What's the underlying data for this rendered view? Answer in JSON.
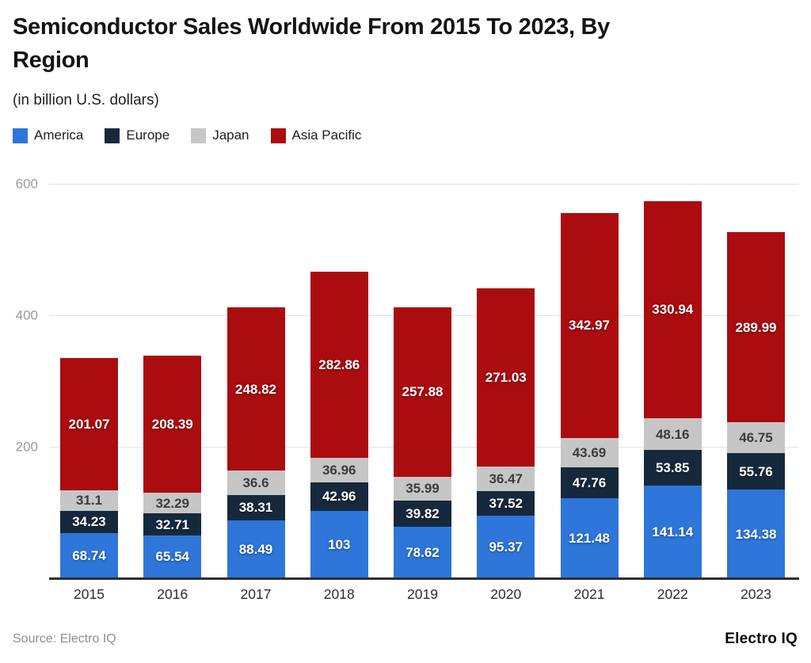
{
  "header": {
    "title": "Semiconductor Sales Worldwide From 2015 To 2023, By Region",
    "subtitle": "(in billion U.S. dollars)"
  },
  "footer": {
    "source": "Source: Electro IQ",
    "brand": "Electro IQ"
  },
  "chart_data": {
    "type": "bar",
    "stacked": true,
    "title": "Semiconductor Sales Worldwide From 2015 To 2023, By Region",
    "subtitle": "(in billion U.S. dollars)",
    "categories": [
      "2015",
      "2016",
      "2017",
      "2018",
      "2019",
      "2020",
      "2021",
      "2022",
      "2023"
    ],
    "series": [
      {
        "name": "America",
        "color": "#2e76d9",
        "label_color": "#ffffff",
        "values": [
          68.74,
          65.54,
          88.49,
          103,
          78.62,
          95.37,
          121.48,
          141.14,
          134.38
        ]
      },
      {
        "name": "Europe",
        "color": "#16293c",
        "label_color": "#ffffff",
        "values": [
          34.23,
          32.71,
          38.31,
          42.96,
          39.82,
          37.52,
          47.76,
          53.85,
          55.76
        ]
      },
      {
        "name": "Japan",
        "color": "#c6c6c6",
        "label_color": "#3c3c3c",
        "values": [
          31.1,
          32.29,
          36.6,
          36.96,
          35.99,
          36.47,
          43.69,
          48.16,
          46.75
        ]
      },
      {
        "name": "Asia Pacific",
        "color": "#ab0c0f",
        "label_color": "#ffffff",
        "values": [
          201.07,
          208.39,
          248.82,
          282.86,
          257.88,
          271.03,
          342.97,
          330.94,
          289.99
        ]
      }
    ],
    "ylim": [
      0,
      600
    ],
    "yticks": [
      200,
      400,
      600
    ],
    "grid": "horizontal",
    "legend_position": "top-left",
    "colors": {
      "gridline": "#e2e2e2",
      "axis_line": "#2e2e2e",
      "ytick_label": "#9b9b9b",
      "xtick_label": "#2d2d2d"
    }
  }
}
